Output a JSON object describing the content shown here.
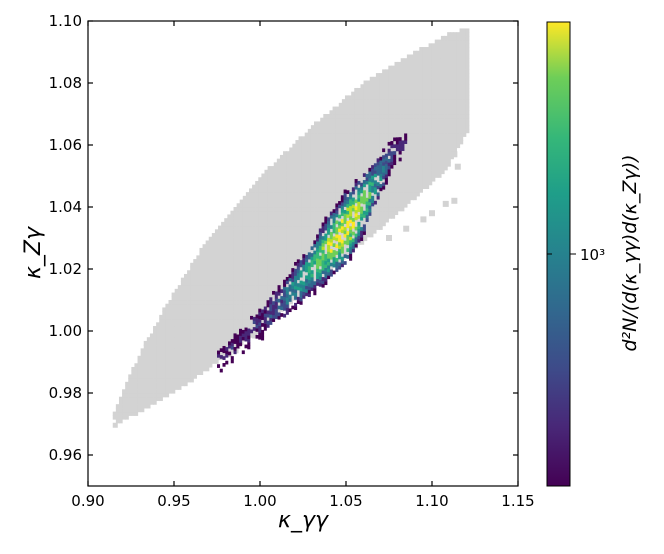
{
  "chart_data": {
    "type": "heatmap",
    "title": "",
    "xlabel": "κ_γγ",
    "ylabel": "κ_Zγ",
    "xlim": [
      0.9,
      1.15
    ],
    "ylim": [
      0.95,
      1.1
    ],
    "x_ticks": [
      "0.90",
      "0.95",
      "1.00",
      "1.05",
      "1.10",
      "1.15"
    ],
    "y_ticks": [
      "0.96",
      "0.98",
      "1.00",
      "1.02",
      "1.04",
      "1.06",
      "1.08",
      "1.10"
    ],
    "grid": false,
    "colormap": "viridis",
    "background_region_color": "#d3d3d3",
    "colorbar": {
      "label": "d²N/(d(κ_γγ)d(κ_Zγ))",
      "scale": "log",
      "tick_labels": [
        "10³"
      ],
      "tick_values": [
        1000
      ],
      "range": [
        200,
        5000
      ]
    },
    "background_region": {
      "description_points": [
        [
          0.917,
          0.97
        ],
        [
          0.93,
          0.974
        ],
        [
          0.96,
          0.984
        ],
        [
          0.99,
          0.996
        ],
        [
          1.02,
          1.01
        ],
        [
          1.05,
          1.024
        ],
        [
          1.08,
          1.038
        ],
        [
          1.108,
          1.052
        ],
        [
          1.122,
          1.066
        ],
        [
          1.122,
          1.098
        ],
        [
          1.11,
          1.096
        ],
        [
          1.09,
          1.09
        ],
        [
          1.06,
          1.08
        ],
        [
          1.03,
          1.066
        ],
        [
          1.0,
          1.05
        ],
        [
          0.97,
          1.03
        ],
        [
          0.945,
          1.008
        ],
        [
          0.925,
          0.987
        ],
        [
          0.914,
          0.972
        ]
      ]
    },
    "density_ridge": {
      "points": [
        [
          0.975,
          0.99,
          250
        ],
        [
          0.99,
          0.997,
          300
        ],
        [
          1.0,
          1.002,
          400
        ],
        [
          1.01,
          1.008,
          500
        ],
        [
          1.02,
          1.014,
          900
        ],
        [
          1.03,
          1.02,
          1500
        ],
        [
          1.04,
          1.027,
          3000
        ],
        [
          1.05,
          1.033,
          4000
        ],
        [
          1.058,
          1.039,
          2500
        ],
        [
          1.065,
          1.046,
          1200
        ],
        [
          1.075,
          1.055,
          400
        ],
        [
          1.085,
          1.062,
          250
        ]
      ]
    }
  }
}
